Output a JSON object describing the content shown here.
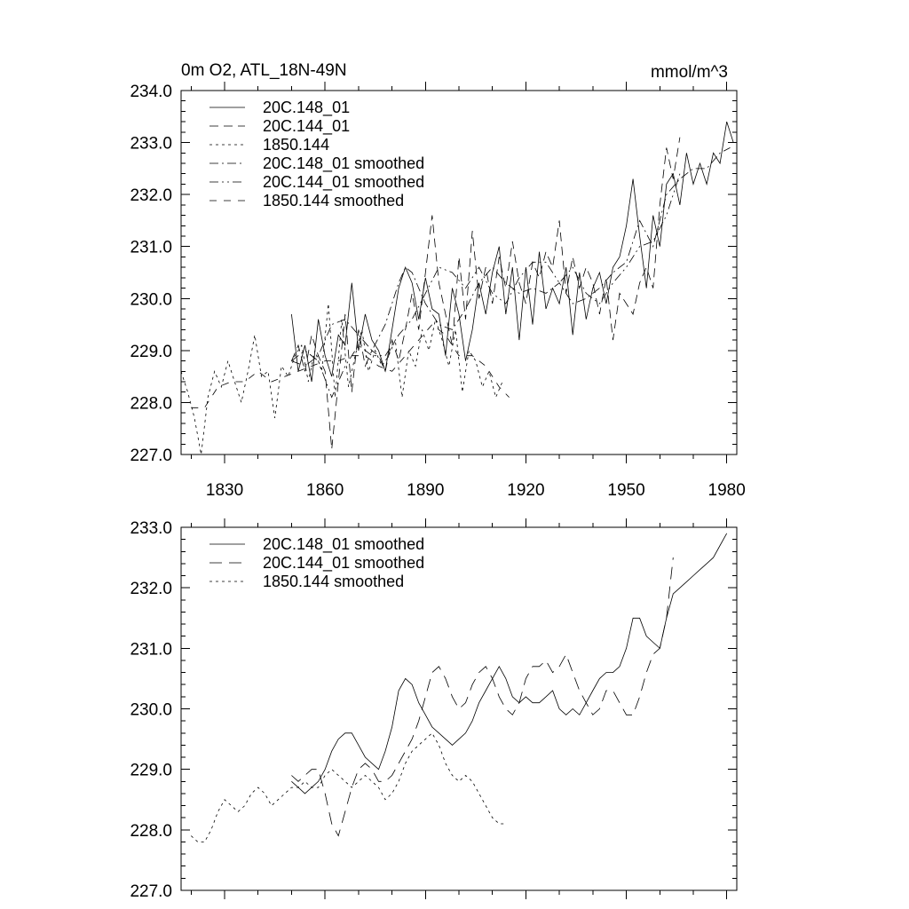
{
  "chart_data": [
    {
      "type": "line",
      "title": "0m O2, ATL_18N-49N",
      "units": "mmol/m^3",
      "xlim": [
        1817,
        1983
      ],
      "ylim": [
        227.0,
        234.0
      ],
      "x_ticks": [
        1830,
        1860,
        1890,
        1920,
        1950,
        1980
      ],
      "y_ticks": [
        "227.0",
        "228.0",
        "229.0",
        "230.0",
        "231.0",
        "232.0",
        "233.0",
        "234.0"
      ],
      "legend_position": "top-left",
      "series": [
        {
          "name": "20C.148_01",
          "dash": "solid",
          "x": [
            1850,
            1852,
            1854,
            1856,
            1858,
            1860,
            1862,
            1864,
            1866,
            1868,
            1870,
            1872,
            1874,
            1876,
            1878,
            1880,
            1882,
            1884,
            1886,
            1888,
            1890,
            1892,
            1894,
            1896,
            1898,
            1900,
            1902,
            1904,
            1906,
            1908,
            1910,
            1912,
            1914,
            1916,
            1918,
            1920,
            1922,
            1924,
            1926,
            1928,
            1930,
            1932,
            1934,
            1936,
            1938,
            1940,
            1942,
            1944,
            1946,
            1948,
            1950,
            1952,
            1954,
            1956,
            1958,
            1960,
            1962,
            1964,
            1966,
            1968,
            1970,
            1972,
            1974,
            1976,
            1978,
            1980,
            1982
          ],
          "y": [
            229.7,
            228.6,
            229.1,
            228.4,
            229.6,
            228.9,
            228.5,
            229.3,
            229.1,
            230.3,
            229.0,
            229.7,
            229.2,
            229.0,
            228.6,
            229.4,
            230.2,
            230.6,
            230.3,
            229.6,
            230.4,
            229.8,
            229.7,
            228.9,
            230.2,
            229.7,
            228.8,
            229.4,
            230.3,
            229.7,
            230.5,
            231.0,
            229.7,
            230.6,
            229.2,
            230.6,
            229.5,
            230.9,
            229.8,
            230.2,
            229.9,
            230.6,
            229.3,
            230.5,
            229.6,
            230.2,
            230.5,
            229.9,
            230.6,
            230.8,
            231.4,
            232.3,
            231.2,
            230.2,
            231.6,
            231.0,
            232.2,
            232.4,
            231.8,
            232.8,
            232.2,
            232.6,
            232.2,
            232.8,
            232.6,
            233.4,
            233.0
          ]
        },
        {
          "name": "20C.144_01",
          "dash": "10,6",
          "x": [
            1850,
            1852,
            1854,
            1856,
            1858,
            1860,
            1862,
            1864,
            1866,
            1868,
            1870,
            1872,
            1874,
            1876,
            1878,
            1880,
            1882,
            1884,
            1886,
            1888,
            1890,
            1892,
            1894,
            1896,
            1898,
            1900,
            1902,
            1904,
            1906,
            1908,
            1910,
            1912,
            1914,
            1916,
            1918,
            1920,
            1922,
            1924,
            1926,
            1928,
            1930,
            1932,
            1934,
            1936,
            1938,
            1940,
            1942,
            1944,
            1946,
            1948,
            1950,
            1952,
            1954,
            1956,
            1958,
            1960,
            1962,
            1964,
            1966
          ],
          "y": [
            228.8,
            229.1,
            228.6,
            229.3,
            228.9,
            228.6,
            227.1,
            228.4,
            229.7,
            228.2,
            229.4,
            228.7,
            229.0,
            228.9,
            228.6,
            229.2,
            228.8,
            229.4,
            230.1,
            229.4,
            230.5,
            231.6,
            230.3,
            229.7,
            229.1,
            230.8,
            229.6,
            231.3,
            230.0,
            230.6,
            229.9,
            230.8,
            230.2,
            231.1,
            230.3,
            229.9,
            230.7,
            230.4,
            230.9,
            230.6,
            231.5,
            230.1,
            230.8,
            230.2,
            230.6,
            230.3,
            229.7,
            230.4,
            229.2,
            230.1,
            229.9,
            229.7,
            230.3,
            230.6,
            230.2,
            231.8,
            232.9,
            232.3,
            233.1
          ]
        },
        {
          "name": "1850.144",
          "dash": "3,4",
          "x": [
            1817,
            1819,
            1821,
            1823,
            1825,
            1827,
            1829,
            1831,
            1833,
            1835,
            1837,
            1839,
            1841,
            1843,
            1845,
            1847,
            1849,
            1851,
            1853,
            1855,
            1857,
            1859,
            1861,
            1863,
            1865,
            1867,
            1869,
            1871,
            1873,
            1875,
            1877,
            1879,
            1881,
            1883,
            1885,
            1887,
            1889,
            1891,
            1893,
            1895,
            1897,
            1899,
            1901,
            1903,
            1905,
            1907,
            1909,
            1911,
            1913
          ],
          "y": [
            228.6,
            228.2,
            227.7,
            227.0,
            228.1,
            228.6,
            228.3,
            228.8,
            228.4,
            228.0,
            228.6,
            229.3,
            228.5,
            228.6,
            227.7,
            228.7,
            228.5,
            228.9,
            229.1,
            228.4,
            229.0,
            228.6,
            229.9,
            228.1,
            229.6,
            228.3,
            228.9,
            229.4,
            228.6,
            229.0,
            228.7,
            228.9,
            229.2,
            228.1,
            229.0,
            228.7,
            229.4,
            229.0,
            229.6,
            229.2,
            228.7,
            229.4,
            228.2,
            229.0,
            228.8,
            228.3,
            228.6,
            228.1,
            228.4
          ]
        },
        {
          "name": "20C.148_01 smoothed",
          "dash": "10,4,2,4",
          "x": [
            1850,
            1854,
            1858,
            1862,
            1866,
            1870,
            1874,
            1878,
            1882,
            1884,
            1886,
            1888,
            1890,
            1894,
            1898,
            1902,
            1906,
            1910,
            1914,
            1918,
            1922,
            1926,
            1930,
            1934,
            1938,
            1942,
            1946,
            1950,
            1954,
            1958,
            1962,
            1966,
            1970,
            1974,
            1978,
            1981
          ],
          "y": [
            228.8,
            228.7,
            228.9,
            229.5,
            229.6,
            229.3,
            229.0,
            229.5,
            230.3,
            230.6,
            230.5,
            230.2,
            229.9,
            229.5,
            229.4,
            229.8,
            230.3,
            230.6,
            230.3,
            230.1,
            230.2,
            230.1,
            230.3,
            229.9,
            230.0,
            230.2,
            230.5,
            230.7,
            231.5,
            231.0,
            232.0,
            232.3,
            232.5,
            232.5,
            232.8,
            232.9
          ]
        },
        {
          "name": "20C.144_01 smoothed",
          "dash": "10,4,2,4,2,4",
          "x": [
            1850,
            1854,
            1858,
            1862,
            1866,
            1870,
            1874,
            1878,
            1882,
            1886,
            1890,
            1894,
            1898,
            1902,
            1906,
            1910,
            1914,
            1918,
            1922,
            1926,
            1930,
            1934,
            1938,
            1942,
            1946,
            1950,
            1954,
            1958,
            1962,
            1966
          ],
          "y": [
            228.8,
            229.0,
            228.8,
            228.1,
            228.7,
            229.1,
            228.9,
            228.9,
            229.3,
            229.6,
            230.1,
            230.6,
            230.5,
            230.2,
            230.6,
            230.1,
            229.9,
            230.4,
            230.7,
            230.7,
            230.3,
            230.6,
            230.1,
            229.9,
            230.3,
            230.6,
            231.0,
            231.1,
            231.6,
            232.4
          ]
        },
        {
          "name": "1850.144 smoothed",
          "dash": "8,8",
          "x": [
            1820,
            1824,
            1828,
            1832,
            1836,
            1840,
            1844,
            1848,
            1852,
            1856,
            1860,
            1864,
            1868,
            1872,
            1876,
            1880,
            1884,
            1888,
            1892,
            1896,
            1900,
            1904,
            1908,
            1912,
            1915
          ],
          "y": [
            227.9,
            227.9,
            228.3,
            228.4,
            228.4,
            228.6,
            228.4,
            228.5,
            228.6,
            228.7,
            228.8,
            228.8,
            228.9,
            228.9,
            228.7,
            228.6,
            228.9,
            229.2,
            229.5,
            229.3,
            228.9,
            228.9,
            228.7,
            228.3,
            228.1
          ]
        }
      ]
    },
    {
      "type": "line",
      "title": "",
      "xlim": [
        1817,
        1983
      ],
      "ylim": [
        227.0,
        233.0
      ],
      "x_ticks": [
        1830,
        1860,
        1890,
        1920,
        1950,
        1980
      ],
      "y_ticks": [
        "227.0",
        "228.0",
        "229.0",
        "230.0",
        "231.0",
        "232.0",
        "233.0"
      ],
      "legend_position": "top-left",
      "series": [
        {
          "name": "20C.148_01 smoothed",
          "dash": "solid",
          "x": [
            1850,
            1852,
            1854,
            1856,
            1858,
            1860,
            1862,
            1864,
            1866,
            1868,
            1870,
            1872,
            1874,
            1876,
            1878,
            1880,
            1882,
            1884,
            1886,
            1888,
            1890,
            1892,
            1894,
            1896,
            1898,
            1900,
            1902,
            1904,
            1906,
            1908,
            1910,
            1912,
            1914,
            1916,
            1918,
            1920,
            1922,
            1924,
            1926,
            1928,
            1930,
            1932,
            1934,
            1936,
            1938,
            1940,
            1942,
            1944,
            1946,
            1948,
            1950,
            1952,
            1954,
            1956,
            1958,
            1960,
            1962,
            1964,
            1966,
            1968,
            1970,
            1972,
            1974,
            1976,
            1978,
            1980
          ],
          "y": [
            228.8,
            228.7,
            228.6,
            228.7,
            228.8,
            229.0,
            229.3,
            229.5,
            229.6,
            229.6,
            229.4,
            229.2,
            229.1,
            229.0,
            229.3,
            229.7,
            230.3,
            230.5,
            230.4,
            230.1,
            229.9,
            229.7,
            229.6,
            229.5,
            229.4,
            229.5,
            229.6,
            229.8,
            230.1,
            230.3,
            230.5,
            230.7,
            230.5,
            230.2,
            230.1,
            230.2,
            230.1,
            230.1,
            230.2,
            230.3,
            230.0,
            229.9,
            230.0,
            229.9,
            230.1,
            230.3,
            230.5,
            230.6,
            230.6,
            230.7,
            231.0,
            231.5,
            231.5,
            231.2,
            231.1,
            231.0,
            231.5,
            231.9,
            232.0,
            232.1,
            232.2,
            232.3,
            232.4,
            232.5,
            232.7,
            232.9
          ]
        },
        {
          "name": "20C.144_01 smoothed",
          "dash": "14,8",
          "x": [
            1850,
            1852,
            1854,
            1856,
            1858,
            1860,
            1862,
            1864,
            1866,
            1868,
            1870,
            1872,
            1874,
            1876,
            1878,
            1880,
            1882,
            1884,
            1886,
            1888,
            1890,
            1892,
            1894,
            1896,
            1898,
            1900,
            1902,
            1904,
            1906,
            1908,
            1910,
            1912,
            1914,
            1916,
            1918,
            1920,
            1922,
            1924,
            1926,
            1928,
            1930,
            1932,
            1934,
            1936,
            1938,
            1940,
            1942,
            1944,
            1946,
            1948,
            1950,
            1952,
            1954,
            1956,
            1958,
            1960,
            1962,
            1964
          ],
          "y": [
            228.9,
            228.8,
            228.9,
            229.0,
            229.0,
            228.6,
            228.1,
            227.9,
            228.3,
            228.7,
            229.0,
            229.1,
            229.0,
            228.8,
            228.8,
            228.9,
            229.1,
            229.3,
            229.5,
            229.8,
            230.2,
            230.6,
            230.7,
            230.5,
            230.2,
            230.0,
            230.1,
            230.4,
            230.6,
            230.7,
            230.5,
            230.2,
            230.0,
            229.9,
            230.1,
            230.5,
            230.7,
            230.7,
            230.8,
            230.6,
            230.7,
            230.9,
            230.6,
            230.3,
            230.1,
            229.9,
            230.0,
            230.3,
            230.3,
            230.1,
            229.9,
            229.9,
            230.2,
            230.6,
            230.9,
            231.0,
            231.5,
            232.5
          ]
        },
        {
          "name": "1850.144 smoothed",
          "dash": "3,4",
          "x": [
            1820,
            1822,
            1824,
            1826,
            1828,
            1830,
            1832,
            1834,
            1836,
            1838,
            1840,
            1842,
            1844,
            1846,
            1848,
            1850,
            1852,
            1854,
            1856,
            1858,
            1860,
            1862,
            1864,
            1866,
            1868,
            1870,
            1872,
            1874,
            1876,
            1878,
            1880,
            1882,
            1884,
            1886,
            1888,
            1890,
            1892,
            1894,
            1896,
            1898,
            1900,
            1902,
            1904,
            1906,
            1908,
            1910,
            1912,
            1914
          ],
          "y": [
            227.9,
            227.8,
            227.8,
            228.0,
            228.3,
            228.5,
            228.4,
            228.3,
            228.4,
            228.6,
            228.7,
            228.6,
            228.4,
            228.5,
            228.6,
            228.7,
            228.7,
            228.8,
            228.7,
            228.7,
            228.9,
            229.0,
            228.9,
            228.8,
            228.7,
            228.8,
            228.9,
            228.8,
            228.7,
            228.5,
            228.6,
            228.8,
            229.1,
            229.3,
            229.4,
            229.5,
            229.6,
            229.4,
            229.1,
            228.9,
            228.8,
            228.9,
            228.8,
            228.6,
            228.4,
            228.2,
            228.1,
            228.1
          ]
        }
      ]
    }
  ]
}
